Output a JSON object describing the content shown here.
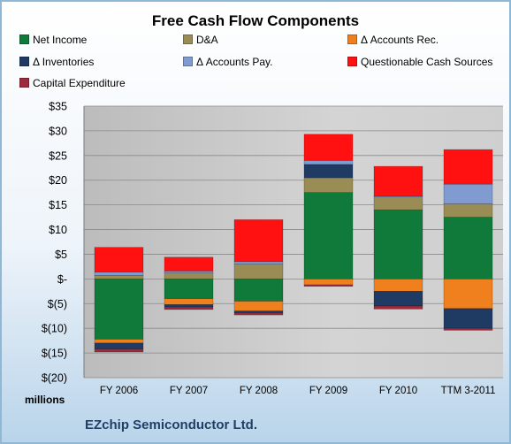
{
  "chart_data": {
    "type": "bar",
    "stacked": true,
    "title": "Free Cash Flow Components",
    "ylabel": "",
    "xlabel": "",
    "units_label": "millions",
    "footer": "EZchip Semiconductor Ltd.",
    "ylim": [
      -20,
      35
    ],
    "yticks": [
      35,
      30,
      25,
      20,
      15,
      10,
      5,
      0,
      -5,
      -10,
      -15,
      -20
    ],
    "ytick_labels": [
      "$35",
      "$30",
      "$25",
      "$20",
      "$15",
      "$10",
      "$5",
      "$-",
      "$(5)",
      "$(10)",
      "$(15)",
      "$(20)"
    ],
    "categories": [
      "FY 2006",
      "FY 2007",
      "FY 2008",
      "FY 2009",
      "FY 2010",
      "TTM 3-2011"
    ],
    "legend_position": "top",
    "series": [
      {
        "name": "Net Income",
        "color": "#0f7a3a",
        "values": [
          -12.2,
          -4.0,
          -4.5,
          17.5,
          14.0,
          12.5
        ]
      },
      {
        "name": "D&A",
        "color": "#9a8c55",
        "values": [
          0.7,
          1.2,
          3.0,
          3.0,
          2.6,
          2.7
        ]
      },
      {
        "name": "Δ Accounts Rec.",
        "color": "#f07f1d",
        "values": [
          -0.8,
          -1.2,
          -2.0,
          -1.2,
          -2.5,
          -6.0
        ]
      },
      {
        "name": "Δ Inventories",
        "color": "#1f3a63",
        "values": [
          -1.2,
          -0.5,
          -0.4,
          2.7,
          -3.0,
          -4.0
        ]
      },
      {
        "name": "Δ Accounts Pay.",
        "color": "#7f9bd0",
        "values": [
          0.7,
          0.4,
          0.5,
          0.8,
          0.2,
          4.0
        ]
      },
      {
        "name": "Questionable Cash Sources",
        "color": "#ff1111",
        "values": [
          5.0,
          2.8,
          8.5,
          5.3,
          6.0,
          7.0
        ]
      },
      {
        "name": "Capital Expenditure",
        "color": "#9e2a3d",
        "values": [
          -0.6,
          -0.5,
          -0.4,
          -0.3,
          -0.6,
          -0.4
        ]
      }
    ]
  }
}
